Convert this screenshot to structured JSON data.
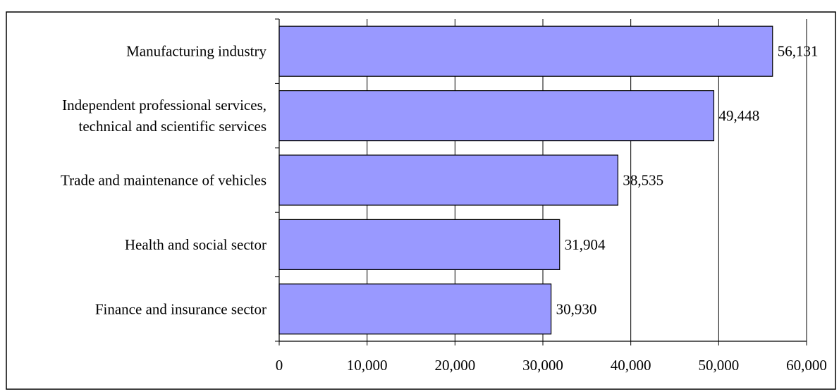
{
  "chart_data": {
    "type": "bar",
    "orientation": "horizontal",
    "title": "",
    "categories": [
      [
        "Manufacturing industry"
      ],
      [
        "Independent professional services,",
        "technical and scientific services"
      ],
      [
        "Trade and maintenance of vehicles"
      ],
      [
        "Health and social sector"
      ],
      [
        "Finance and insurance sector"
      ]
    ],
    "values": [
      56131,
      49448,
      38535,
      31904,
      30930
    ],
    "value_labels": [
      "56,131",
      "49,448",
      "38,535",
      "31,904",
      "30,930"
    ],
    "xlim": [
      0,
      60000
    ],
    "xticks": [
      0,
      10000,
      20000,
      30000,
      40000,
      50000,
      60000
    ],
    "xtick_labels": [
      "0",
      "10,000",
      "20,000",
      "30,000",
      "40,000",
      "50,000",
      "60,000"
    ],
    "grid": "vertical",
    "legend": "none",
    "colors": {
      "bar_fill": "#9999ff",
      "bar_stroke": "#000000",
      "grid": "#000000"
    }
  }
}
